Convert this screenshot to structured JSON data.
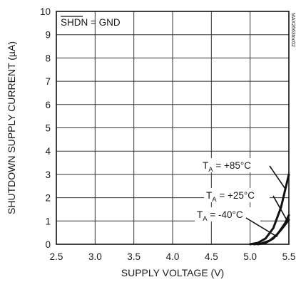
{
  "chart_data": {
    "type": "line",
    "title": "",
    "xlabel": "SUPPLY VOLTAGE (V)",
    "ylabel": "SHUTDOWN SUPPLY CURRENT (µA)",
    "xlim": [
      2.5,
      5.5
    ],
    "ylim": [
      0,
      10
    ],
    "x_ticks": [
      2.5,
      3.0,
      3.5,
      4.0,
      4.5,
      5.0,
      5.5
    ],
    "x_tick_labels": [
      "2.5",
      "3.0",
      "3.5",
      "4.0",
      "4.5",
      "5.0",
      "5.5"
    ],
    "y_ticks": [
      0,
      1,
      2,
      3,
      4,
      5,
      6,
      7,
      8,
      9,
      10
    ],
    "y_tick_labels": [
      "0",
      "1",
      "2",
      "3",
      "4",
      "5",
      "6",
      "7",
      "8",
      "9",
      "10"
    ],
    "grid": true,
    "condition_label": {
      "overline": "SHDN",
      "rest": " = GND"
    },
    "watermark": "MAX2663toc02",
    "series": [
      {
        "name": "TA = +85°C",
        "label": {
          "prefix": "T",
          "sub": "A",
          "suffix": " = +85°C"
        },
        "x": [
          5.0,
          5.1,
          5.2,
          5.3,
          5.4,
          5.5
        ],
        "y": [
          0.0,
          0.06,
          0.25,
          0.7,
          1.6,
          3.0
        ]
      },
      {
        "name": "TA = +25°C",
        "label": {
          "prefix": "T",
          "sub": "A",
          "suffix": " = +25°C"
        },
        "x": [
          5.05,
          5.15,
          5.25,
          5.35,
          5.45,
          5.5
        ],
        "y": [
          0.0,
          0.04,
          0.15,
          0.42,
          0.9,
          1.25
        ]
      },
      {
        "name": "TA = -40°C",
        "label": {
          "prefix": "T",
          "sub": "A",
          "suffix": " = -40°C"
        },
        "x": [
          5.1,
          5.2,
          5.3,
          5.4,
          5.5
        ],
        "y": [
          0.0,
          0.06,
          0.25,
          0.62,
          1.05
        ]
      }
    ]
  }
}
